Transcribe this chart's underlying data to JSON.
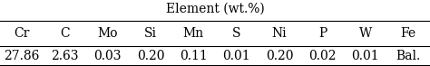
{
  "title": "Element (wt.%)",
  "columns": [
    "Cr",
    "C",
    "Mo",
    "Si",
    "Mn",
    "S",
    "Ni",
    "P",
    "W",
    "Fe"
  ],
  "values": [
    "27.86",
    "2.63",
    "0.03",
    "0.20",
    "0.11",
    "0.01",
    "0.20",
    "0.02",
    "0.01",
    "Bal."
  ],
  "title_fontsize": 10,
  "data_fontsize": 10,
  "header_fontsize": 10,
  "background_color": "#ffffff",
  "text_color": "#000000",
  "line_color": "#000000"
}
